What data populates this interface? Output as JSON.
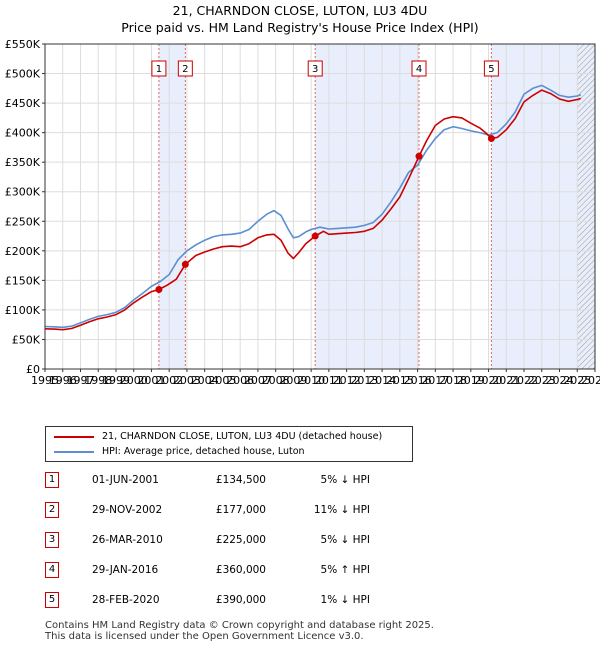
{
  "title_line1": "21, CHARNDON CLOSE, LUTON, LU3 4DU",
  "title_line2": "Price paid vs. HM Land Registry's House Price Index (HPI)",
  "chart_data": {
    "type": "line",
    "title": "21, CHARNDON CLOSE, LUTON, LU3 4DU — Price paid vs. HM Land Registry's House Price Index (HPI)",
    "xlabel": "",
    "ylabel": "",
    "xlim": [
      1995,
      2026
    ],
    "ylim": [
      0,
      550000
    ],
    "x_ticks": [
      "1995",
      "1996",
      "1997",
      "1998",
      "1999",
      "2000",
      "2001",
      "2002",
      "2003",
      "2004",
      "2005",
      "2006",
      "2007",
      "2008",
      "2009",
      "2010",
      "2011",
      "2012",
      "2013",
      "2014",
      "2015",
      "2016",
      "2017",
      "2018",
      "2019",
      "2020",
      "2021",
      "2022",
      "2023",
      "2024",
      "2025",
      "2026"
    ],
    "y_ticks": [
      {
        "value": 0,
        "label": "£0"
      },
      {
        "value": 50000,
        "label": "£50K"
      },
      {
        "value": 100000,
        "label": "£100K"
      },
      {
        "value": 150000,
        "label": "£150K"
      },
      {
        "value": 200000,
        "label": "£200K"
      },
      {
        "value": 250000,
        "label": "£250K"
      },
      {
        "value": 300000,
        "label": "£300K"
      },
      {
        "value": 350000,
        "label": "£350K"
      },
      {
        "value": 400000,
        "label": "£400K"
      },
      {
        "value": 450000,
        "label": "£450K"
      },
      {
        "value": 500000,
        "label": "£500K"
      },
      {
        "value": 550000,
        "label": "£550K"
      }
    ],
    "series": [
      {
        "name": "21, CHARNDON CLOSE, LUTON, LU3 4DU (detached house)",
        "color": "#cc0000",
        "x": [
          1995.0,
          1995.5,
          1996.0,
          1996.5,
          1997.0,
          1997.5,
          1998.0,
          1998.5,
          1999.0,
          1999.5,
          2000.0,
          2000.5,
          2001.0,
          2001.42,
          2001.42,
          2001.9,
          2002.4,
          2002.91,
          2002.91,
          2003.5,
          2004.0,
          2004.5,
          2005.0,
          2005.5,
          2006.0,
          2006.5,
          2007.0,
          2007.5,
          2007.9,
          2008.3,
          2008.7,
          2009.0,
          2009.3,
          2009.7,
          2010.23,
          2010.23,
          2010.7,
          2011.0,
          2011.5,
          2012.0,
          2012.5,
          2013.0,
          2013.5,
          2014.0,
          2014.5,
          2015.0,
          2015.5,
          2016.08,
          2016.08,
          2016.5,
          2017.0,
          2017.5,
          2018.0,
          2018.5,
          2019.0,
          2019.5,
          2019.9,
          2020.16,
          2020.16,
          2020.5,
          2021.0,
          2021.5,
          2022.0,
          2022.5,
          2023.0,
          2023.5,
          2024.0,
          2024.5,
          2025.0,
          2025.2
        ],
        "values": [
          68000,
          67500,
          66500,
          68500,
          74000,
          80000,
          85000,
          88000,
          92000,
          100000,
          112000,
          122000,
          131000,
          134500,
          134500,
          142000,
          152000,
          177000,
          177000,
          192000,
          198000,
          203000,
          207000,
          208000,
          207000,
          212000,
          222000,
          227000,
          228000,
          218000,
          196000,
          187000,
          197000,
          212000,
          225000,
          225000,
          233000,
          228000,
          229000,
          230000,
          231000,
          233000,
          238000,
          252000,
          271000,
          291000,
          322000,
          360000,
          360000,
          386000,
          412000,
          423000,
          427000,
          425000,
          416000,
          408000,
          398000,
          390000,
          390000,
          392000,
          405000,
          424000,
          452000,
          463000,
          472000,
          466000,
          457000,
          453000,
          456000,
          458000
        ]
      },
      {
        "name": "HPI: Average price, detached house, Luton",
        "color": "#5b8fd1",
        "x": [
          1995.0,
          1995.5,
          1996.0,
          1996.5,
          1997.0,
          1997.5,
          1998.0,
          1998.5,
          1999.0,
          1999.5,
          2000.0,
          2000.5,
          2001.0,
          2001.5,
          2002.0,
          2002.5,
          2003.0,
          2003.5,
          2004.0,
          2004.5,
          2005.0,
          2005.5,
          2006.0,
          2006.5,
          2007.0,
          2007.5,
          2007.9,
          2008.3,
          2008.7,
          2009.0,
          2009.3,
          2009.7,
          2010.0,
          2010.5,
          2011.0,
          2011.5,
          2012.0,
          2012.5,
          2013.0,
          2013.5,
          2014.0,
          2014.5,
          2015.0,
          2015.5,
          2016.0,
          2016.5,
          2017.0,
          2017.5,
          2018.0,
          2018.5,
          2019.0,
          2019.5,
          2020.0,
          2020.5,
          2021.0,
          2021.5,
          2022.0,
          2022.5,
          2023.0,
          2023.5,
          2024.0,
          2024.5,
          2025.0,
          2025.2
        ],
        "values": [
          72000,
          71500,
          70500,
          72500,
          78000,
          84000,
          89000,
          92000,
          96000,
          104000,
          117000,
          128000,
          140000,
          148000,
          160000,
          185000,
          200000,
          210000,
          218000,
          224000,
          227000,
          228000,
          230000,
          236000,
          250000,
          262000,
          268000,
          260000,
          237000,
          222000,
          224000,
          232000,
          236000,
          240000,
          237000,
          238000,
          239000,
          240000,
          243000,
          248000,
          262000,
          283000,
          306000,
          333000,
          345000,
          370000,
          390000,
          405000,
          410000,
          407000,
          403000,
          400000,
          396000,
          400000,
          415000,
          435000,
          465000,
          475000,
          480000,
          472000,
          463000,
          460000,
          462000,
          464000
        ]
      }
    ],
    "sales": [
      {
        "label": "1",
        "x": 2001.42,
        "value": 134500
      },
      {
        "label": "2",
        "x": 2002.91,
        "value": 177000
      },
      {
        "label": "3",
        "x": 2010.23,
        "value": 225000
      },
      {
        "label": "4",
        "x": 2016.08,
        "value": 360000
      },
      {
        "label": "5",
        "x": 2020.16,
        "value": 390000
      }
    ],
    "shaded_ranges": [
      [
        2001.42,
        2002.91
      ],
      [
        2010.23,
        2016.08
      ],
      [
        2020.16,
        2026.0
      ]
    ],
    "hatched_from": 2025.0
  },
  "legend": {
    "property_label": "21, CHARNDON CLOSE, LUTON, LU3 4DU (detached house)",
    "hpi_label": "HPI: Average price, detached house, Luton",
    "property_color": "#cc0000",
    "hpi_color": "#5b8fd1"
  },
  "sales_table": [
    {
      "num": "1",
      "date": "01-JUN-2001",
      "price": "£134,500",
      "hpi": "5% ↓ HPI"
    },
    {
      "num": "2",
      "date": "29-NOV-2002",
      "price": "£177,000",
      "hpi": "11% ↓ HPI"
    },
    {
      "num": "3",
      "date": "26-MAR-2010",
      "price": "£225,000",
      "hpi": "5% ↓ HPI"
    },
    {
      "num": "4",
      "date": "29-JAN-2016",
      "price": "£360,000",
      "hpi": "5% ↑ HPI"
    },
    {
      "num": "5",
      "date": "28-FEB-2020",
      "price": "£390,000",
      "hpi": "1% ↓ HPI"
    }
  ],
  "footer": {
    "line1": "Contains HM Land Registry data © Crown copyright and database right 2025.",
    "line2": "This data is licensed under the Open Government Licence v3.0."
  }
}
